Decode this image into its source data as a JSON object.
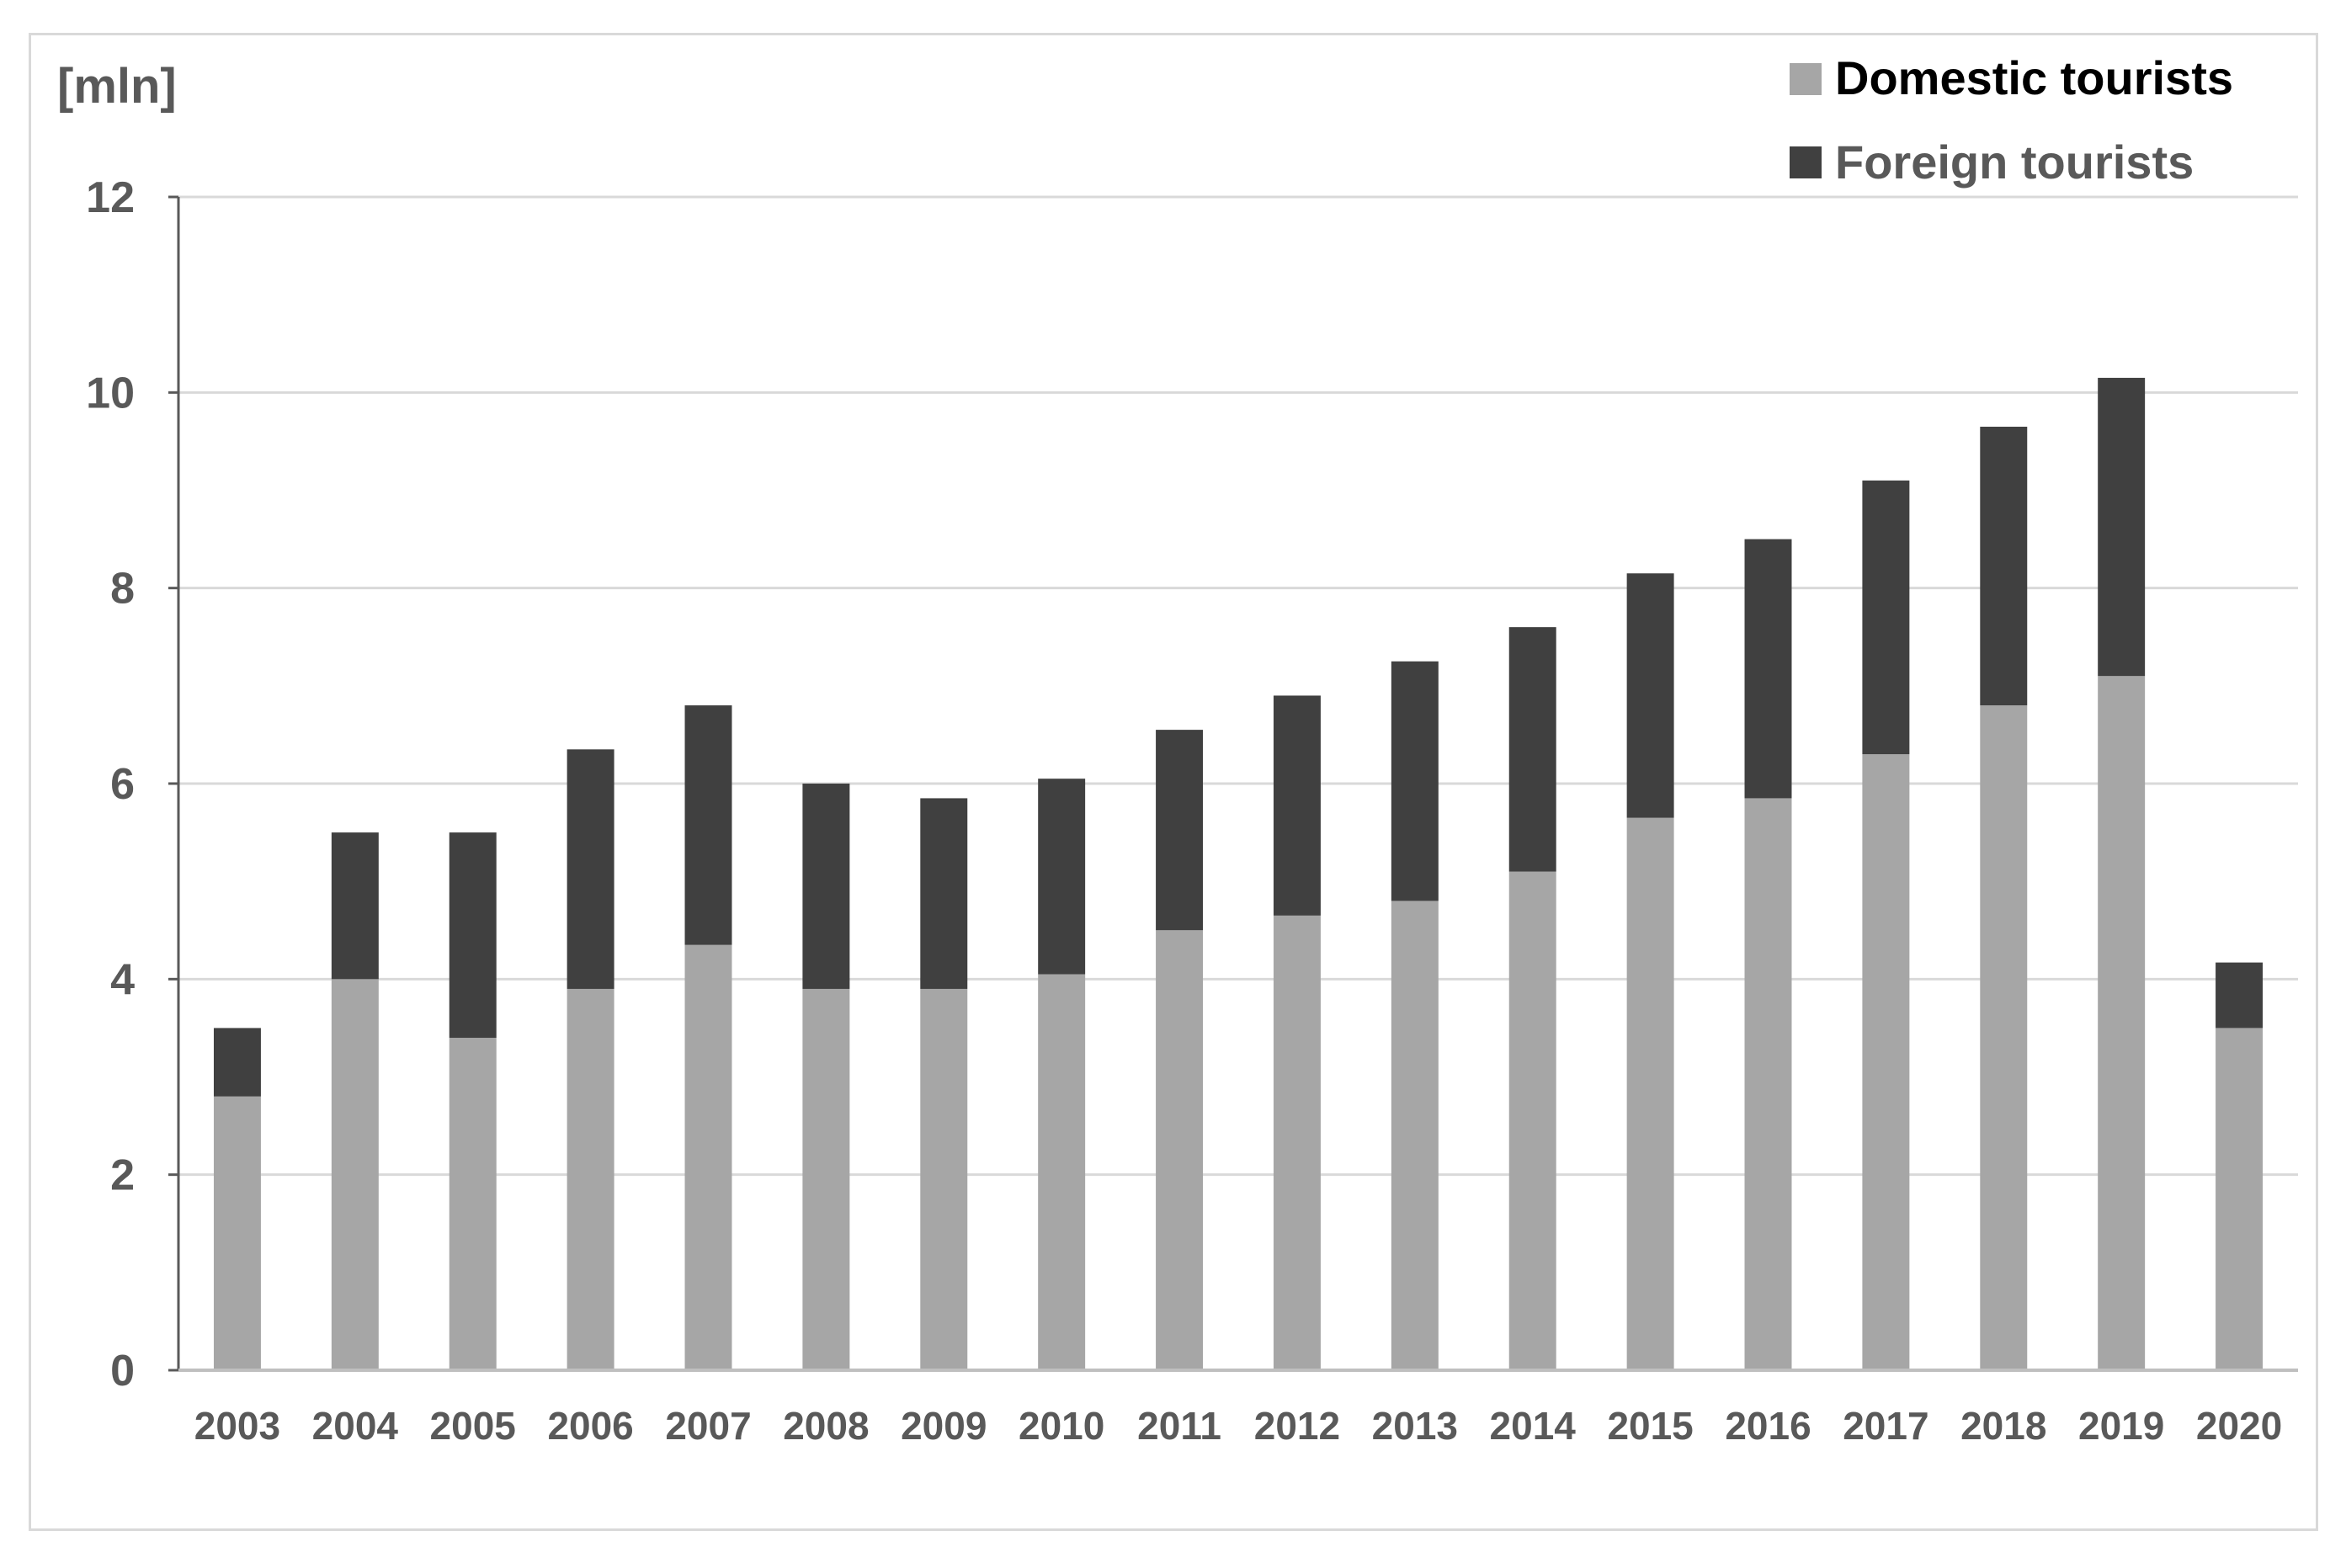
{
  "chart_data": {
    "type": "bar",
    "stacked": true,
    "title": "",
    "unit_label": "[mln]",
    "xlabel": "",
    "ylabel": "[mln]",
    "ylim": [
      0,
      12
    ],
    "yticks": [
      0,
      2,
      4,
      6,
      8,
      10,
      12
    ],
    "grid": true,
    "legend_position": "top-right",
    "categories": [
      "2003",
      "2004",
      "2005",
      "2006",
      "2007",
      "2008",
      "2009",
      "2010",
      "2011",
      "2012",
      "2013",
      "2014",
      "2015",
      "2016",
      "2017",
      "2018",
      "2019",
      "2020"
    ],
    "series": [
      {
        "name": "Domestic tourists",
        "color": "#a6a6a6",
        "values": [
          2.8,
          4.0,
          3.4,
          3.9,
          4.35,
          3.9,
          3.9,
          4.05,
          4.5,
          4.65,
          4.8,
          5.1,
          5.65,
          5.85,
          6.3,
          6.8,
          7.1,
          3.5
        ]
      },
      {
        "name": "Foreign tourists",
        "color": "#404040",
        "values": [
          0.7,
          1.5,
          2.1,
          2.45,
          2.45,
          2.1,
          1.95,
          2.0,
          2.05,
          2.25,
          2.45,
          2.5,
          2.5,
          2.65,
          2.8,
          2.85,
          3.05,
          0.67
        ]
      }
    ]
  },
  "legend": {
    "domestic_label": "Domestic tourists",
    "foreign_label": "Foreign tourists"
  },
  "colors": {
    "domestic": "#a6a6a6",
    "foreign": "#404040",
    "grid": "#d9d9d9",
    "axis": "#595959",
    "frame": "#d9d9d9"
  }
}
